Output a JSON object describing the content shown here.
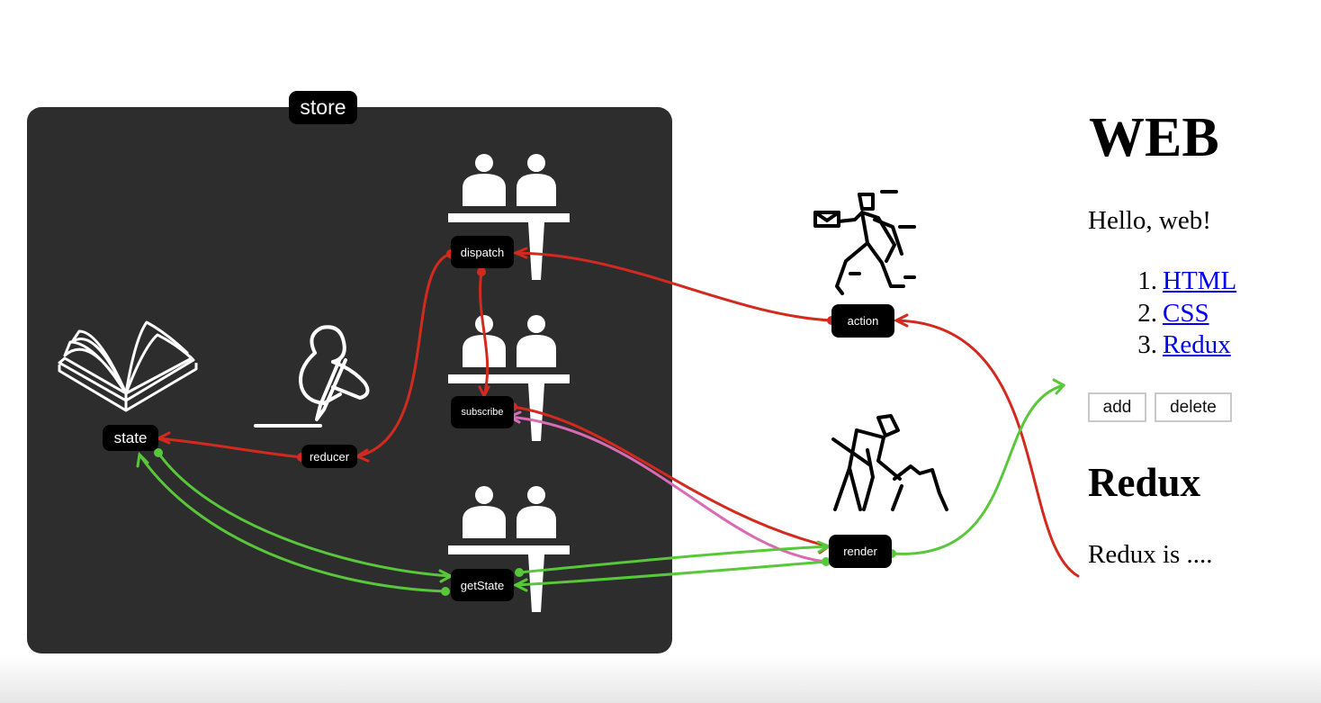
{
  "diagram": {
    "store_label": "store",
    "nodes": {
      "state": "state",
      "reducer": "reducer",
      "dispatch": "dispatch",
      "subscribe": "subscribe",
      "getState": "getState",
      "action": "action",
      "render": "render"
    },
    "icons": [
      "book-icon",
      "writer-icon",
      "counter-clerks-icon",
      "delivery-person-icon",
      "worker-digging-icon"
    ],
    "colors": {
      "store_bg": "#2d2d2d",
      "dispatch_flow": "#d22a1e",
      "read_flow": "#58c83a",
      "subscribe_flow": "#d96ab4"
    }
  },
  "web": {
    "title": "WEB",
    "greeting": "Hello, web!",
    "list": [
      {
        "num": "1.",
        "label": "HTML"
      },
      {
        "num": "2.",
        "label": "CSS"
      },
      {
        "num": "3.",
        "label": "Redux"
      }
    ],
    "buttons": {
      "add": "add",
      "delete": "delete"
    },
    "section_title": "Redux",
    "section_body": "Redux is ...."
  }
}
